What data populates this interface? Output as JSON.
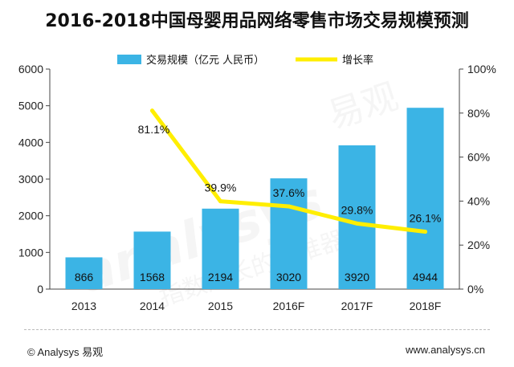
{
  "title": "2016-2018中国母婴用品网络零售市场交易规模预测",
  "chart_data": {
    "type": "bar+line",
    "title": "2016-2018中国母婴用品网络零售市场交易规模预测",
    "categories": [
      "2013",
      "2014",
      "2015",
      "2016F",
      "2017F",
      "2018F"
    ],
    "series": [
      {
        "name": "交易规模（亿元 人民币）",
        "type": "bar",
        "axis": "left",
        "values": [
          866,
          1568,
          2194,
          3020,
          3920,
          4944
        ],
        "labels": [
          "866",
          "1568",
          "2194",
          "3020",
          "3920",
          "4944"
        ],
        "color": "#3bb4e5"
      },
      {
        "name": "增长率",
        "type": "line",
        "axis": "right",
        "values": [
          null,
          81.1,
          39.9,
          37.6,
          29.8,
          26.1
        ],
        "labels": [
          null,
          "81.1%",
          "39.9%",
          "37.6%",
          "29.8%",
          "26.1%"
        ],
        "color": "#ffee00"
      }
    ],
    "left_axis": {
      "min": 0,
      "max": 6000,
      "ticks": [
        "0",
        "1000",
        "2000",
        "3000",
        "4000",
        "5000",
        "6000"
      ]
    },
    "right_axis": {
      "min": 0,
      "max": 100,
      "ticks": [
        "0%",
        "20%",
        "40%",
        "60%",
        "80%",
        "100%"
      ]
    },
    "legend_position": "top"
  },
  "watermark": {
    "text_main": "analysys",
    "text_cn": "易观",
    "text_slogan": "指数成长的助推器"
  },
  "footer": {
    "left": "© Analysys 易观",
    "right": "www.analysys.cn"
  }
}
